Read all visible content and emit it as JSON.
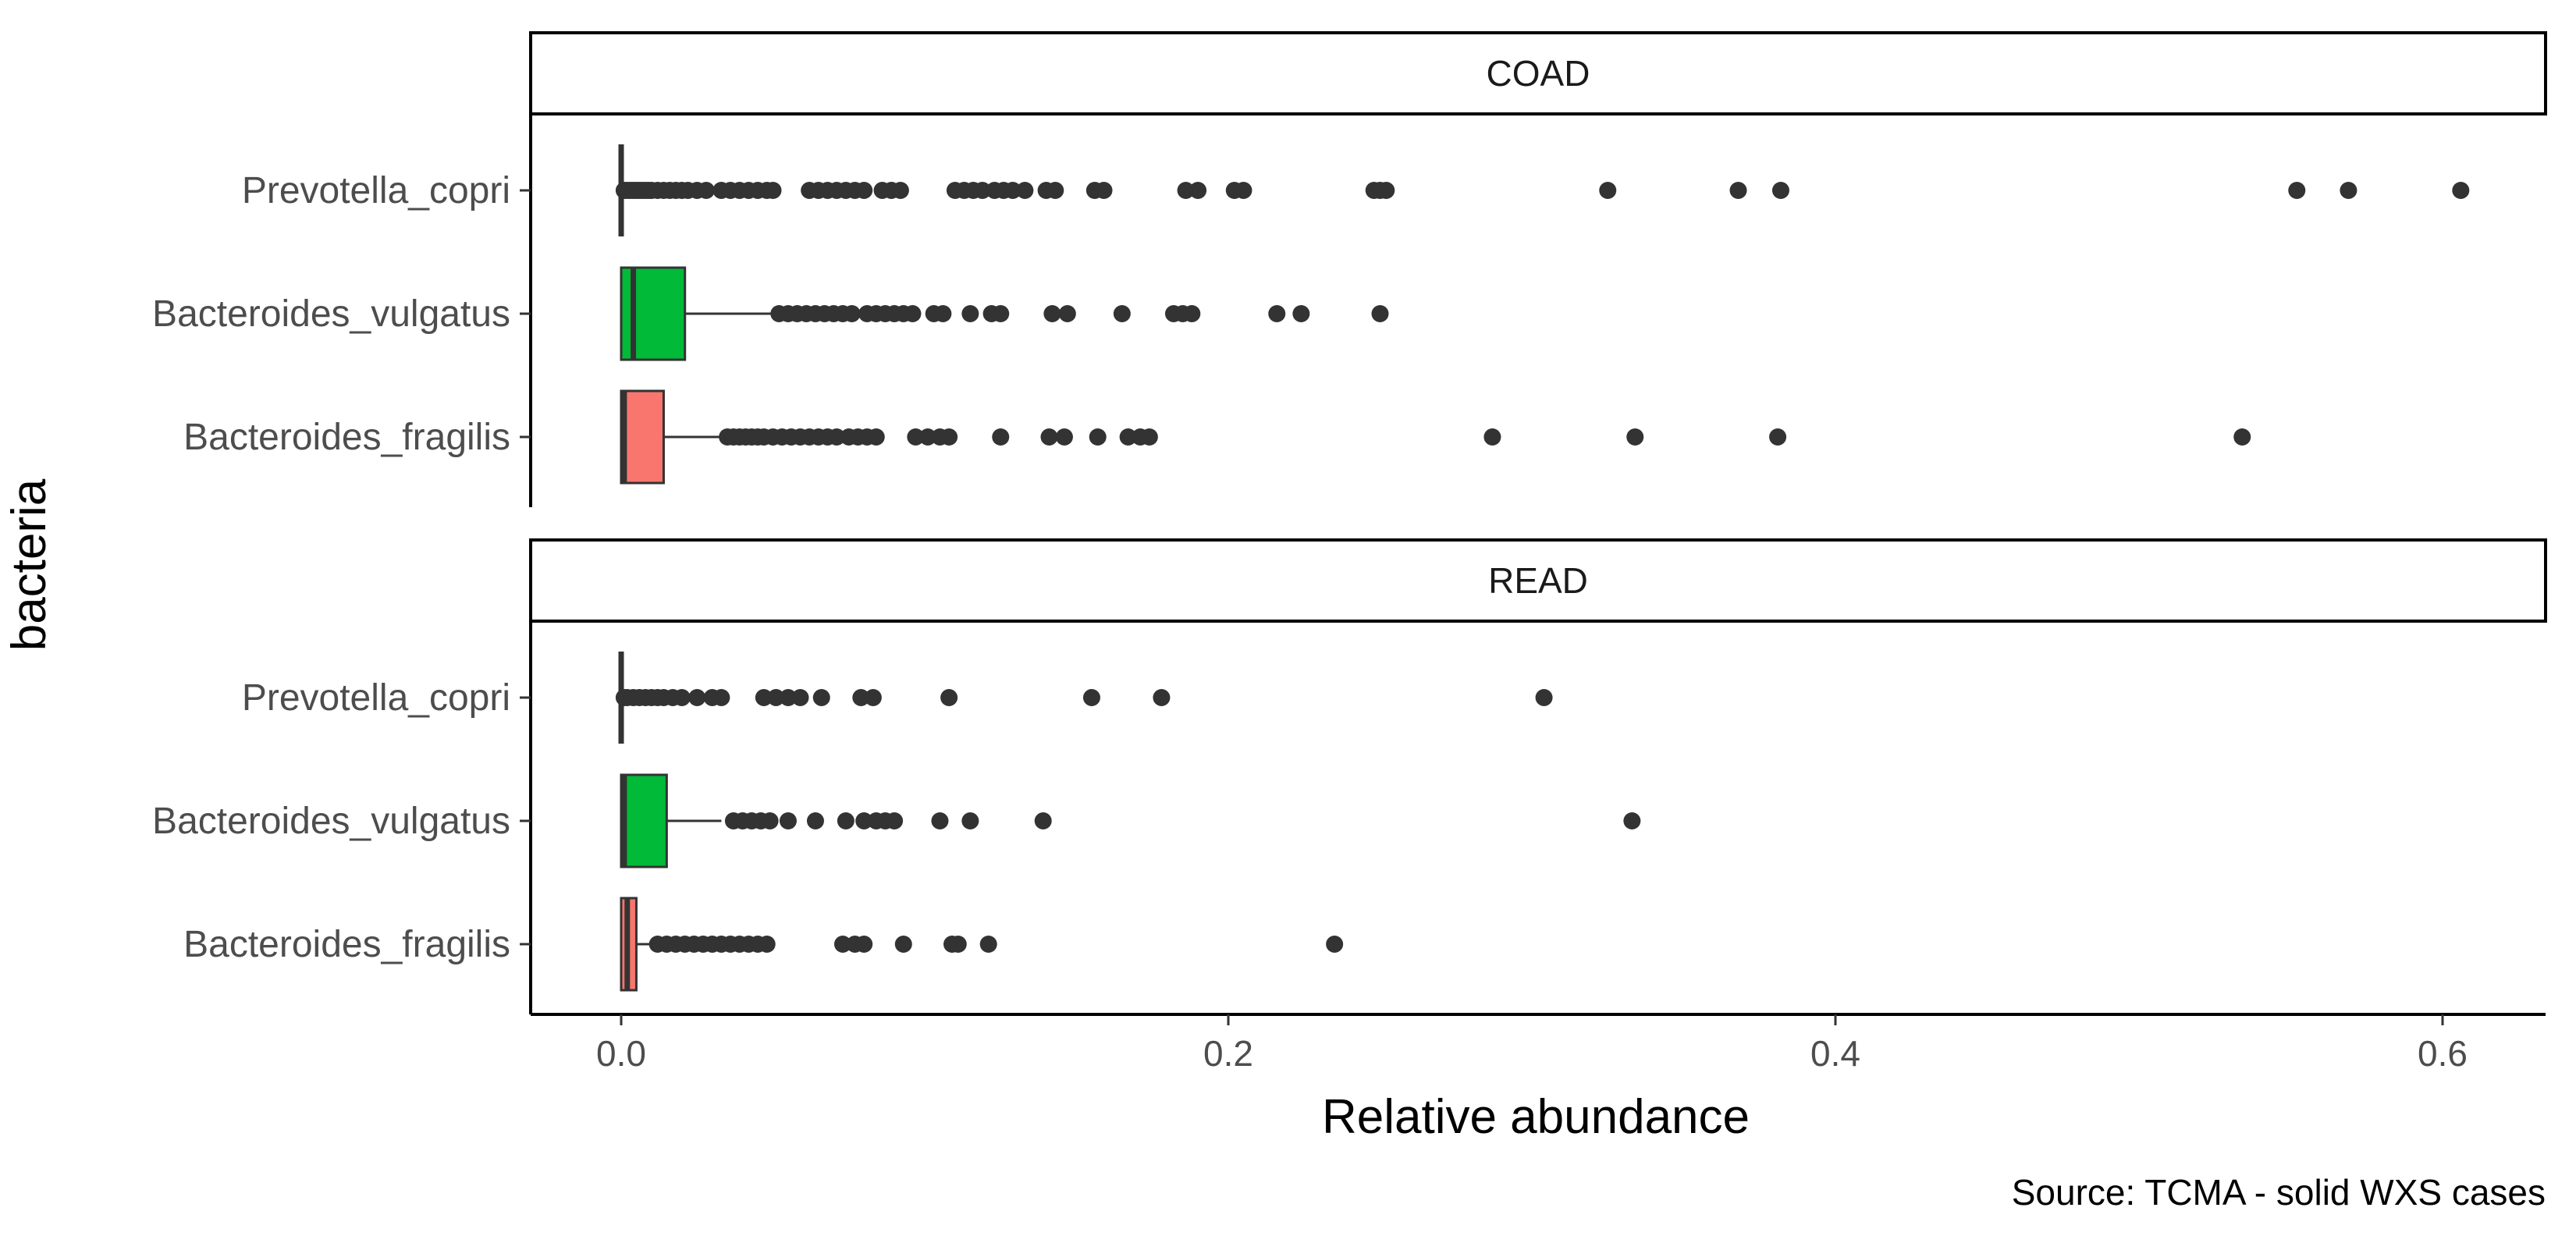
{
  "chart_data": {
    "type": "boxplot",
    "xlabel": "Relative abundance",
    "ylabel": "bacteria",
    "caption": "Source: TCMA - solid WXS cases",
    "xlim": [
      -0.03,
      0.635
    ],
    "x_ticks": [
      0.0,
      0.2,
      0.4,
      0.6
    ],
    "x_tick_labels": [
      "0.0",
      "0.2",
      "0.4",
      "0.6"
    ],
    "grid": false,
    "legend": "none",
    "categories": [
      "Prevotella_copri",
      "Bacteroides_vulgatus",
      "Bacteroides_fragilis"
    ],
    "colors": {
      "Prevotella_copri": "#619CFF",
      "Bacteroides_vulgatus": "#00BA38",
      "Bacteroides_fragilis": "#F8766D"
    },
    "panels": [
      {
        "name": "COAD",
        "boxes": [
          {
            "category": "Prevotella_copri",
            "q1": 0.0,
            "median": 0.0,
            "q3": 0.0,
            "whisker_low": 0.0,
            "whisker_high": 0.0,
            "outliers": [
              0.001,
              0.002,
              0.003,
              0.004,
              0.005,
              0.006,
              0.007,
              0.008,
              0.009,
              0.01,
              0.012,
              0.014,
              0.016,
              0.018,
              0.02,
              0.022,
              0.025,
              0.028,
              0.033,
              0.036,
              0.039,
              0.042,
              0.045,
              0.048,
              0.05,
              0.062,
              0.065,
              0.068,
              0.071,
              0.074,
              0.077,
              0.08,
              0.086,
              0.089,
              0.092,
              0.11,
              0.113,
              0.116,
              0.119,
              0.123,
              0.126,
              0.129,
              0.133,
              0.14,
              0.143,
              0.156,
              0.159,
              0.186,
              0.19,
              0.202,
              0.205,
              0.248,
              0.25,
              0.252,
              0.325,
              0.368,
              0.382,
              0.552,
              0.569,
              0.606
            ]
          },
          {
            "category": "Bacteroides_vulgatus",
            "q1": 0.0,
            "median": 0.004,
            "q3": 0.021,
            "whisker_low": 0.0,
            "whisker_high": 0.052,
            "outliers": [
              0.052,
              0.055,
              0.058,
              0.061,
              0.064,
              0.067,
              0.07,
              0.073,
              0.076,
              0.081,
              0.084,
              0.087,
              0.09,
              0.093,
              0.096,
              0.103,
              0.106,
              0.115,
              0.122,
              0.125,
              0.142,
              0.147,
              0.165,
              0.182,
              0.185,
              0.188,
              0.216,
              0.224,
              0.25
            ]
          },
          {
            "category": "Bacteroides_fragilis",
            "q1": 0.0,
            "median": 0.001,
            "q3": 0.014,
            "whisker_low": 0.0,
            "whisker_high": 0.034,
            "outliers": [
              0.035,
              0.037,
              0.039,
              0.041,
              0.043,
              0.045,
              0.047,
              0.05,
              0.053,
              0.056,
              0.059,
              0.062,
              0.065,
              0.068,
              0.071,
              0.075,
              0.078,
              0.081,
              0.084,
              0.097,
              0.101,
              0.105,
              0.108,
              0.125,
              0.141,
              0.146,
              0.157,
              0.167,
              0.171,
              0.174,
              0.287,
              0.334,
              0.381,
              0.534
            ]
          }
        ]
      },
      {
        "name": "READ",
        "boxes": [
          {
            "category": "Prevotella_copri",
            "q1": 0.0,
            "median": 0.0,
            "q3": 0.0,
            "whisker_low": 0.0,
            "whisker_high": 0.0,
            "outliers": [
              0.001,
              0.002,
              0.004,
              0.006,
              0.008,
              0.01,
              0.012,
              0.014,
              0.017,
              0.02,
              0.025,
              0.03,
              0.033,
              0.047,
              0.051,
              0.055,
              0.059,
              0.066,
              0.079,
              0.083,
              0.108,
              0.155,
              0.178,
              0.304
            ]
          },
          {
            "category": "Bacteroides_vulgatus",
            "q1": 0.0,
            "median": 0.001,
            "q3": 0.015,
            "whisker_low": 0.0,
            "whisker_high": 0.033,
            "outliers": [
              0.037,
              0.04,
              0.043,
              0.046,
              0.049,
              0.055,
              0.064,
              0.074,
              0.08,
              0.084,
              0.087,
              0.09,
              0.105,
              0.115,
              0.139,
              0.333
            ]
          },
          {
            "category": "Bacteroides_fragilis",
            "q1": 0.0,
            "median": 0.002,
            "q3": 0.005,
            "whisker_low": 0.0,
            "whisker_high": 0.011,
            "outliers": [
              0.012,
              0.015,
              0.018,
              0.021,
              0.024,
              0.027,
              0.03,
              0.033,
              0.036,
              0.039,
              0.042,
              0.045,
              0.048,
              0.073,
              0.077,
              0.08,
              0.093,
              0.109,
              0.111,
              0.121,
              0.235
            ]
          }
        ]
      }
    ]
  }
}
